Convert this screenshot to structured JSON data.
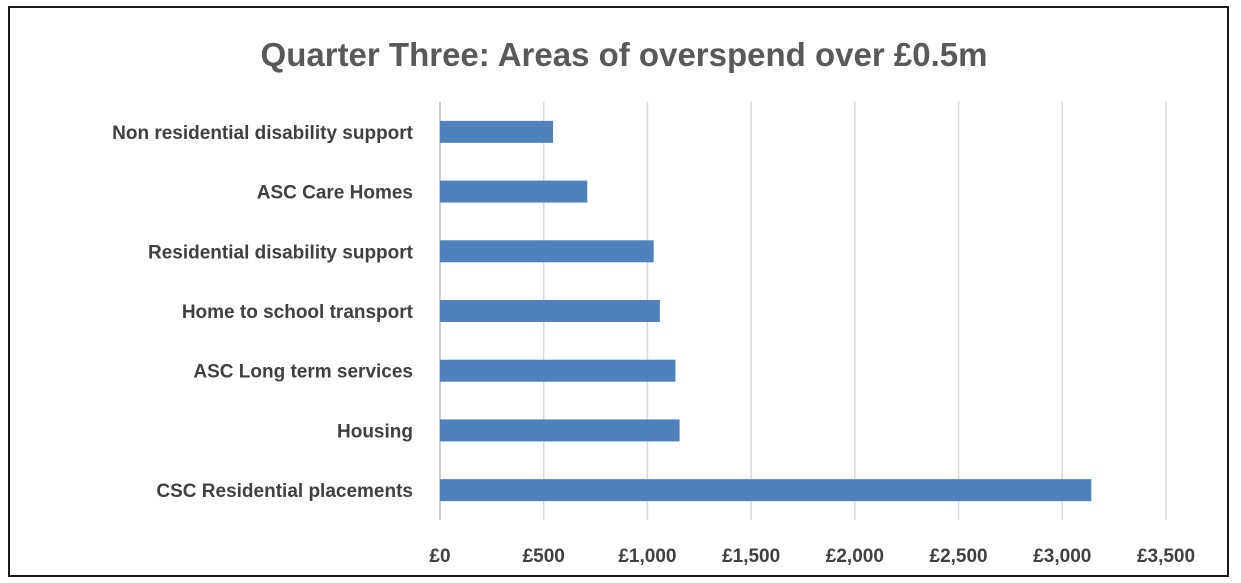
{
  "chart_data": {
    "type": "bar",
    "orientation": "horizontal",
    "title": "Quarter Three: Areas of overspend over £0.5m",
    "xlabel": "",
    "ylabel": "",
    "categories": [
      "Non residential disability support",
      "ASC Care Homes",
      "Residential disability support",
      "Home to school transport",
      "ASC Long term services",
      "Housing",
      "CSC Residential placements"
    ],
    "values": [
      545,
      710,
      1030,
      1060,
      1135,
      1155,
      3140
    ],
    "xlim": [
      0,
      3500
    ],
    "x_ticks": [
      0,
      500,
      1000,
      1500,
      2000,
      2500,
      3000,
      3500
    ],
    "x_tick_labels": [
      "£0",
      "£500",
      "£1,000",
      "£1,500",
      "£2,000",
      "£2,500",
      "£3,000",
      "£3,500"
    ],
    "grid": "vertical",
    "legend": "none",
    "bar_color": "#4f81bd",
    "grid_color": "#d9d9d9"
  }
}
